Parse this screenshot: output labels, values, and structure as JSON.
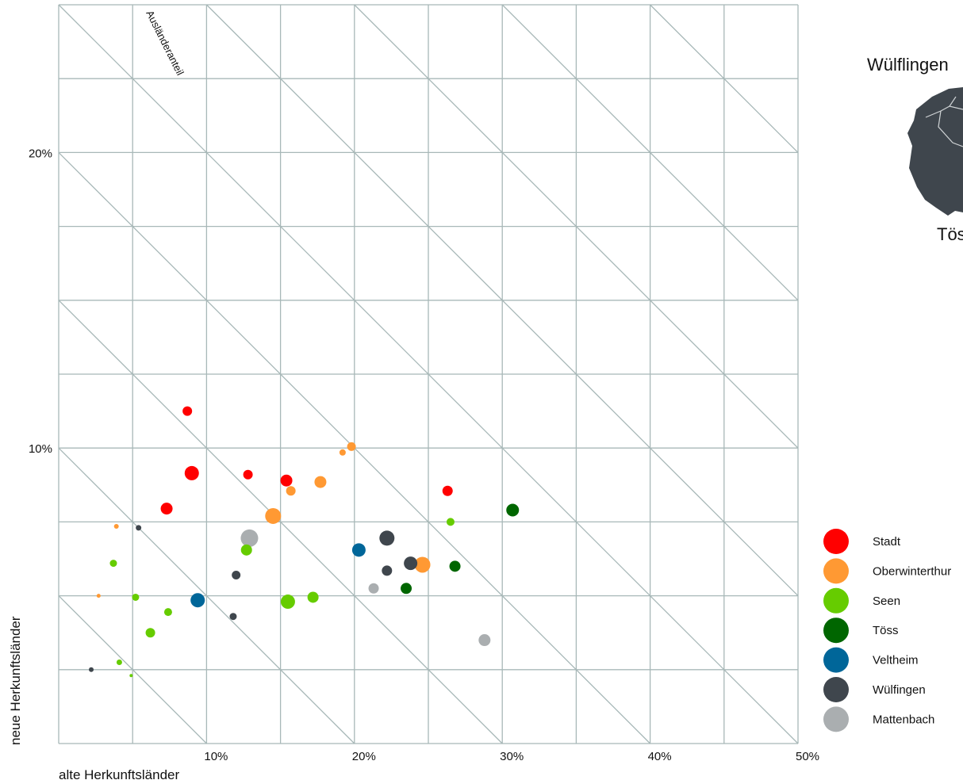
{
  "chart_data": {
    "type": "scatter",
    "title": "",
    "xlabel": "alte Herkunftsländer",
    "ylabel": "neue Herkunftsländer",
    "diagonal_label": "Ausländeranteil",
    "xlim": [
      0,
      50
    ],
    "ylim": [
      0,
      25
    ],
    "x_ticks": [
      {
        "value": 10,
        "label": "10%"
      },
      {
        "value": 20,
        "label": "20%"
      },
      {
        "value": 30,
        "label": "30%"
      },
      {
        "value": 40,
        "label": "40%"
      },
      {
        "value": 50,
        "label": "50%"
      }
    ],
    "y_ticks": [
      {
        "value": 10,
        "label": "10%"
      },
      {
        "value": 20,
        "label": "20%"
      }
    ],
    "grid": true,
    "diagonal_grid": true,
    "legend_position": "bottom-right",
    "series": [
      {
        "name": "Stadt",
        "color": "#ff0000",
        "points": [
          {
            "x": 8.7,
            "y": 11.25,
            "s": 6
          },
          {
            "x": 9.0,
            "y": 9.15,
            "s": 9
          },
          {
            "x": 12.8,
            "y": 9.1,
            "s": 6
          },
          {
            "x": 15.4,
            "y": 8.9,
            "s": 7.5
          },
          {
            "x": 7.3,
            "y": 7.95,
            "s": 7.5
          },
          {
            "x": 26.3,
            "y": 8.55,
            "s": 6.5
          }
        ]
      },
      {
        "name": "Oberwinterthur",
        "color": "#ff9933",
        "points": [
          {
            "x": 19.8,
            "y": 10.05,
            "s": 5.5
          },
          {
            "x": 19.2,
            "y": 9.85,
            "s": 4
          },
          {
            "x": 17.7,
            "y": 8.85,
            "s": 7.5
          },
          {
            "x": 15.7,
            "y": 8.55,
            "s": 6
          },
          {
            "x": 14.5,
            "y": 7.7,
            "s": 10
          },
          {
            "x": 24.6,
            "y": 6.05,
            "s": 10
          },
          {
            "x": 3.9,
            "y": 7.35,
            "s": 3
          },
          {
            "x": 2.7,
            "y": 5.0,
            "s": 2.5
          }
        ]
      },
      {
        "name": "Seen",
        "color": "#66cc00",
        "points": [
          {
            "x": 26.5,
            "y": 7.5,
            "s": 5
          },
          {
            "x": 12.7,
            "y": 6.55,
            "s": 7
          },
          {
            "x": 3.7,
            "y": 6.1,
            "s": 4.5
          },
          {
            "x": 5.2,
            "y": 4.95,
            "s": 4.5
          },
          {
            "x": 7.4,
            "y": 4.45,
            "s": 5
          },
          {
            "x": 15.5,
            "y": 4.8,
            "s": 9
          },
          {
            "x": 17.2,
            "y": 4.95,
            "s": 7
          },
          {
            "x": 6.2,
            "y": 3.75,
            "s": 6
          },
          {
            "x": 4.1,
            "y": 2.75,
            "s": 3.5
          },
          {
            "x": 4.9,
            "y": 2.3,
            "s": 2
          }
        ]
      },
      {
        "name": "Töss",
        "color": "#006600",
        "points": [
          {
            "x": 30.7,
            "y": 7.9,
            "s": 8
          },
          {
            "x": 26.8,
            "y": 6.0,
            "s": 7
          },
          {
            "x": 23.5,
            "y": 5.25,
            "s": 7
          }
        ]
      },
      {
        "name": "Veltheim",
        "color": "#006699",
        "points": [
          {
            "x": 20.3,
            "y": 6.55,
            "s": 8.5
          },
          {
            "x": 9.4,
            "y": 4.85,
            "s": 9
          }
        ]
      },
      {
        "name": "Wülfingen",
        "color": "#3f464d",
        "points": [
          {
            "x": 22.2,
            "y": 6.95,
            "s": 9.5
          },
          {
            "x": 23.8,
            "y": 6.1,
            "s": 8.5
          },
          {
            "x": 22.2,
            "y": 5.85,
            "s": 6.5
          },
          {
            "x": 12.0,
            "y": 5.7,
            "s": 5.5
          },
          {
            "x": 5.4,
            "y": 7.3,
            "s": 3.5
          },
          {
            "x": 11.8,
            "y": 4.3,
            "s": 4.5
          },
          {
            "x": 2.2,
            "y": 2.5,
            "s": 3
          }
        ]
      },
      {
        "name": "Mattenbach",
        "color": "#aaaeb0",
        "points": [
          {
            "x": 12.9,
            "y": 6.95,
            "s": 11
          },
          {
            "x": 21.3,
            "y": 5.25,
            "s": 6.5
          },
          {
            "x": 28.8,
            "y": 3.5,
            "s": 7.5
          }
        ]
      }
    ]
  },
  "map": {
    "labels": [
      "Wülflingen",
      "Töss"
    ],
    "fill": "#3f464d"
  }
}
